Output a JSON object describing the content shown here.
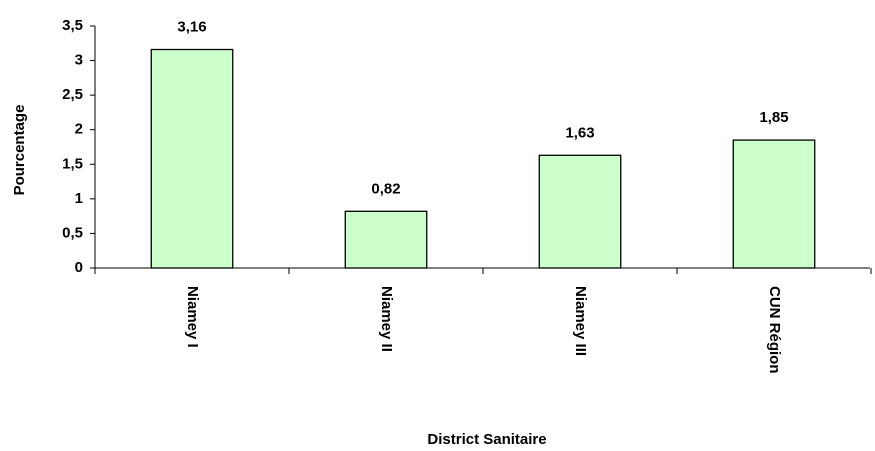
{
  "chart_data": {
    "type": "bar",
    "x_label": "District Sanitaire",
    "y_label": "Pourcentage",
    "categories": [
      "Niamey I",
      "Niamey II",
      "Niamey III",
      "CUN Région"
    ],
    "values": [
      3.16,
      0.82,
      1.63,
      1.85
    ],
    "value_labels": [
      "3,16",
      "0,82",
      "1,63",
      "1,85"
    ],
    "color": "#ccffcc",
    "ylim": [
      0,
      3.5
    ],
    "yticks": [
      0,
      {
        "value": 0.5,
        "label": "0,5"
      },
      1,
      {
        "value": 1.5,
        "label": "1,5"
      },
      2,
      {
        "value": 2.5,
        "label": "2,5"
      },
      3,
      {
        "value": 3.5,
        "label": "3,5"
      }
    ],
    "grid": false
  }
}
